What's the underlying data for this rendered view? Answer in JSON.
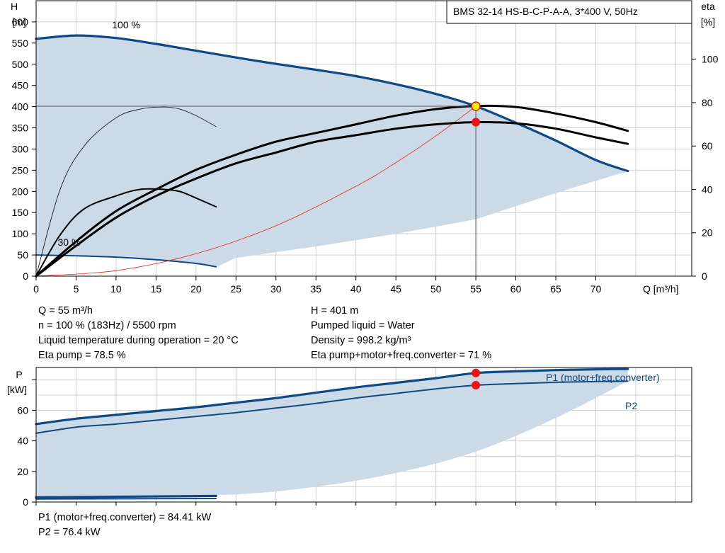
{
  "title": "BMS 32-14 HS-B-C-P-A-A, 3*400 V, 50Hz",
  "colors": {
    "envelope_fill": "#ccd9e6",
    "curve_blue": "#0d4a85",
    "system_curve": "#e8251f",
    "black_curve": "#000000",
    "grid": "#d0d0d0",
    "operating_point_fill": "#ffee00",
    "operating_point_stroke": "#cc2200",
    "marker": "#ee1111",
    "label_blue": "#0d4a85"
  },
  "info_left": [
    "Q = 55 m³/h",
    "n = 100 % (183Hz) / 5500 rpm",
    "Liquid temperature during operation = 20 °C",
    "Eta pump = 78.5 %"
  ],
  "info_right": [
    "H = 401 m",
    "Pumped liquid = Water",
    "Density = 998.2 kg/m³",
    "Eta pump+motor+freq.converter = 71 %"
  ],
  "power_info": [
    "P1 (motor+freq.converter) = 84.41 kW",
    "P2 = 76.4 kW"
  ],
  "chart_data": [
    {
      "type": "line",
      "name": "head-chart",
      "title": "BMS 32-14 HS-B-C-P-A-A, 3*400 V, 50Hz",
      "xlabel": "Q [m³/h]",
      "ylabel_line1": "H",
      "ylabel_line2": "[m]",
      "y2label_line1": "eta",
      "y2label_line2": "[%]",
      "xlim": [
        0,
        82
      ],
      "ylim": [
        0,
        650
      ],
      "y2lim": [
        0,
        127
      ],
      "x_ticks": [
        0,
        5,
        10,
        15,
        20,
        25,
        30,
        35,
        40,
        45,
        50,
        55,
        60,
        65,
        70
      ],
      "y_ticks": [
        0,
        50,
        100,
        150,
        200,
        250,
        300,
        350,
        400,
        450,
        500,
        550,
        600
      ],
      "y2_ticks": [
        0,
        20,
        40,
        60,
        80,
        100
      ],
      "grid": true,
      "curve_labels": [
        {
          "text": "100 %",
          "x": 9.5,
          "y": 585
        },
        {
          "text": "30 %",
          "x": 2.7,
          "y": 72
        }
      ],
      "envelope": {
        "upper": [
          [
            0,
            560
          ],
          [
            5,
            568
          ],
          [
            10,
            562
          ],
          [
            15,
            548
          ],
          [
            20,
            532
          ],
          [
            25,
            516
          ],
          [
            30,
            501
          ],
          [
            35,
            487
          ],
          [
            40,
            472
          ],
          [
            45,
            453
          ],
          [
            50,
            430
          ],
          [
            55,
            401
          ],
          [
            60,
            362
          ],
          [
            65,
            320
          ],
          [
            70,
            274
          ],
          [
            74,
            248
          ]
        ],
        "lower": [
          [
            74,
            248
          ],
          [
            65,
            196
          ],
          [
            55,
            134
          ],
          [
            45,
            100
          ],
          [
            35,
            70
          ],
          [
            25,
            43
          ],
          [
            22.5,
            21
          ]
        ]
      },
      "series": [
        {
          "name": "100 %",
          "axis": "H",
          "style": "blue-thick",
          "points": [
            [
              0,
              560
            ],
            [
              5,
              568
            ],
            [
              10,
              562
            ],
            [
              15,
              548
            ],
            [
              20,
              532
            ],
            [
              25,
              516
            ],
            [
              30,
              501
            ],
            [
              35,
              487
            ],
            [
              40,
              472
            ],
            [
              45,
              453
            ],
            [
              50,
              430
            ],
            [
              55,
              401
            ],
            [
              60,
              362
            ],
            [
              65,
              320
            ],
            [
              70,
              274
            ],
            [
              74,
              248
            ]
          ]
        },
        {
          "name": "30 %",
          "axis": "H",
          "style": "blue",
          "points": [
            [
              0,
              50
            ],
            [
              5,
              48
            ],
            [
              10,
              45
            ],
            [
              15,
              39
            ],
            [
              20,
              30
            ],
            [
              22.5,
              22
            ]
          ]
        },
        {
          "name": "system curve",
          "axis": "H",
          "style": "red-thin",
          "points": [
            [
              0,
              0
            ],
            [
              10,
              13
            ],
            [
              20,
              53
            ],
            [
              30,
              119
            ],
            [
              40,
              212
            ],
            [
              45,
              268
            ],
            [
              50,
              331
            ],
            [
              55,
              401
            ]
          ]
        },
        {
          "name": "eta pump",
          "axis": "eta",
          "style": "black-thick",
          "points": [
            [
              0,
              0
            ],
            [
              5,
              16
            ],
            [
              10,
              30
            ],
            [
              15,
              40
            ],
            [
              20,
              49
            ],
            [
              25,
              56
            ],
            [
              30,
              62
            ],
            [
              35,
              66
            ],
            [
              40,
              70
            ],
            [
              45,
              74
            ],
            [
              50,
              77
            ],
            [
              55,
              78.5
            ],
            [
              60,
              78
            ],
            [
              65,
              75
            ],
            [
              70,
              71
            ],
            [
              74,
              67
            ]
          ]
        },
        {
          "name": "eta total",
          "axis": "eta",
          "style": "black-thick",
          "points": [
            [
              0,
              0
            ],
            [
              5,
              14
            ],
            [
              10,
              27
            ],
            [
              15,
              37
            ],
            [
              20,
              45
            ],
            [
              25,
              52
            ],
            [
              30,
              57
            ],
            [
              35,
              62
            ],
            [
              40,
              65
            ],
            [
              45,
              68
            ],
            [
              50,
              70
            ],
            [
              55,
              71
            ],
            [
              60,
              70.5
            ],
            [
              65,
              68
            ],
            [
              70,
              64
            ],
            [
              74,
              61
            ]
          ]
        },
        {
          "name": "eta pump 30%",
          "axis": "eta",
          "style": "black-thin",
          "points": [
            [
              0,
              0
            ],
            [
              3,
              40
            ],
            [
              6,
              60
            ],
            [
              10,
              73
            ],
            [
              13,
              77
            ],
            [
              16,
              78
            ],
            [
              18,
              77
            ],
            [
              20,
              74
            ],
            [
              22.5,
              69
            ]
          ]
        },
        {
          "name": "eta total 30%",
          "axis": "eta",
          "style": "black-medium",
          "points": [
            [
              0,
              0
            ],
            [
              3,
              19
            ],
            [
              6,
              31
            ],
            [
              10,
              37
            ],
            [
              13,
              40
            ],
            [
              16,
              40
            ],
            [
              18,
              39
            ],
            [
              20,
              36
            ],
            [
              22.5,
              32
            ]
          ]
        }
      ],
      "operating_point": {
        "Q": 55,
        "H": 401
      },
      "eta_markers": [
        78.5,
        71
      ]
    },
    {
      "type": "line",
      "name": "power-chart",
      "ylabel_line1": "P",
      "ylabel_line2": "[kW]",
      "xlim": [
        0,
        82
      ],
      "ylim": [
        0,
        88
      ],
      "x_ticks": [
        0,
        5,
        10,
        15,
        20,
        25,
        30,
        35,
        40,
        45,
        50,
        55,
        60,
        65,
        70
      ],
      "y_ticks": [
        0,
        20,
        40,
        60
      ],
      "grid": true,
      "envelope": {
        "upper": [
          [
            0,
            51
          ],
          [
            10,
            57
          ],
          [
            20,
            62
          ],
          [
            30,
            68
          ],
          [
            40,
            75
          ],
          [
            50,
            81
          ],
          [
            55,
            84.4
          ],
          [
            60,
            85.5
          ],
          [
            65,
            86.3
          ],
          [
            70,
            86.8
          ],
          [
            74,
            87
          ]
        ],
        "lower": [
          [
            74,
            79
          ],
          [
            65,
            55
          ],
          [
            55,
            33
          ],
          [
            45,
            19
          ],
          [
            35,
            10
          ],
          [
            25,
            5
          ],
          [
            10,
            3
          ],
          [
            0,
            2
          ]
        ]
      },
      "series": [
        {
          "name": "P1 (motor+freq.converter)",
          "style": "blue-thick",
          "points": [
            [
              0,
              51
            ],
            [
              5,
              54.5
            ],
            [
              10,
              57
            ],
            [
              15,
              59.5
            ],
            [
              20,
              62
            ],
            [
              25,
              65
            ],
            [
              30,
              68
            ],
            [
              35,
              71.5
            ],
            [
              40,
              75
            ],
            [
              45,
              78
            ],
            [
              50,
              81
            ],
            [
              55,
              84.4
            ],
            [
              60,
              85.5
            ],
            [
              65,
              86.3
            ],
            [
              70,
              86.8
            ],
            [
              74,
              87
            ]
          ]
        },
        {
          "name": "P2",
          "style": "blue",
          "points": [
            [
              0,
              45
            ],
            [
              5,
              49
            ],
            [
              10,
              51
            ],
            [
              15,
              53.5
            ],
            [
              20,
              56
            ],
            [
              25,
              58.5
            ],
            [
              30,
              61.5
            ],
            [
              35,
              64.5
            ],
            [
              40,
              68
            ],
            [
              45,
              71
            ],
            [
              50,
              74
            ],
            [
              55,
              76.4
            ],
            [
              60,
              77.5
            ],
            [
              65,
              78.3
            ],
            [
              70,
              78.8
            ],
            [
              74,
              79
            ]
          ]
        },
        {
          "name": "P1 30%",
          "style": "blue-thick",
          "show_label": false,
          "points": [
            [
              0,
              3
            ],
            [
              22.5,
              4
            ]
          ]
        },
        {
          "name": "P2 30%",
          "style": "blue",
          "show_label": false,
          "points": [
            [
              0,
              2
            ],
            [
              22.5,
              2.3
            ]
          ]
        }
      ],
      "markers": [
        84.4,
        76.4
      ],
      "marker_Q": 55
    }
  ]
}
